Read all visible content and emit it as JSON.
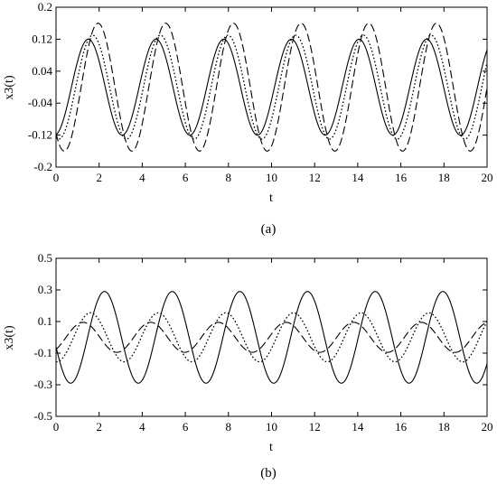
{
  "chart_data": [
    {
      "type": "line",
      "caption": "(a)",
      "xlabel": "t",
      "ylabel": "x3(t)",
      "xlim": [
        0,
        20
      ],
      "ylim": [
        -0.2,
        0.2
      ],
      "x_ticks": [
        0,
        2,
        4,
        6,
        8,
        10,
        12,
        14,
        16,
        18,
        20
      ],
      "x_tick_labels": [
        "0",
        "2",
        "4",
        "6",
        "8",
        "10",
        "12",
        "14",
        "16",
        "18",
        "20"
      ],
      "y_ticks": [
        -0.2,
        -0.12,
        -0.04,
        0.04,
        0.12,
        0.2
      ],
      "y_tick_labels": [
        "-0.2",
        "-0.12",
        "-0.04",
        "0.04",
        "0.12",
        "0.2"
      ],
      "grid": false,
      "legend": "none",
      "series": [
        {
          "style": "solid",
          "amplitude": 0.12,
          "period": 3.14,
          "peak_t": 1.5
        },
        {
          "style": "dotted",
          "amplitude": 0.13,
          "period": 3.14,
          "peak_t": 1.7
        },
        {
          "style": "dashed",
          "amplitude": 0.16,
          "period": 3.14,
          "peak_t": 1.95
        }
      ]
    },
    {
      "type": "line",
      "caption": "(b)",
      "xlabel": "t",
      "ylabel": "x3(t)",
      "xlim": [
        0,
        20
      ],
      "ylim": [
        -0.5,
        0.5
      ],
      "x_ticks": [
        0,
        2,
        4,
        6,
        8,
        10,
        12,
        14,
        16,
        18,
        20
      ],
      "x_tick_labels": [
        "0",
        "2",
        "4",
        "6",
        "8",
        "10",
        "12",
        "14",
        "16",
        "18",
        "20"
      ],
      "y_ticks": [
        -0.5,
        -0.3,
        -0.1,
        0.1,
        0.3,
        0.5
      ],
      "y_tick_labels": [
        "-0.5",
        "-0.3",
        "-0.1",
        "0.1",
        "0.3",
        "0.5"
      ],
      "grid": false,
      "legend": "none",
      "series": [
        {
          "style": "solid",
          "amplitude": 0.29,
          "period": 3.14,
          "peak_t": 2.25
        },
        {
          "style": "dotted",
          "amplitude": 0.155,
          "period": 3.14,
          "peak_t": 1.6
        },
        {
          "style": "dashed",
          "amplitude": 0.095,
          "period": 3.14,
          "peak_t": 1.25
        }
      ]
    }
  ]
}
